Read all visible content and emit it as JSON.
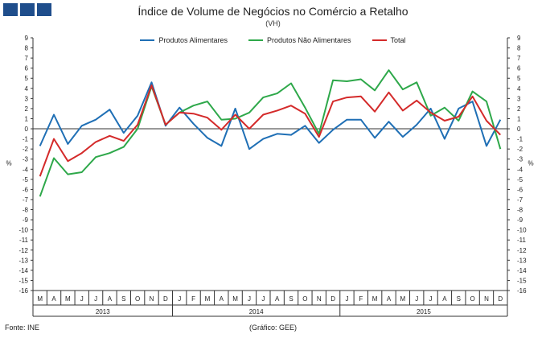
{
  "header": {
    "title": "Índice de Volume de Negócios no Comércio a Retalho",
    "subtitle": "(VH)"
  },
  "footer": {
    "source": "Fonte: INE",
    "credit": "(Gráfico: GEE)"
  },
  "chart_data": {
    "type": "line",
    "title": "Índice de Volume de Negócios no Comércio a Retalho",
    "subtitle": "(VH)",
    "ylabel_left": "%",
    "ylabel_right": "%",
    "ylim": [
      -16,
      9
    ],
    "yticks": [
      9,
      8,
      7,
      6,
      5,
      4,
      3,
      2,
      1,
      0,
      -1,
      -2,
      -3,
      -4,
      -5,
      -6,
      -7,
      -8,
      -9,
      -10,
      -11,
      -12,
      -13,
      -14,
      -15,
      -16
    ],
    "grid": false,
    "legend_position": "top",
    "x": [
      "M",
      "A",
      "M",
      "J",
      "J",
      "A",
      "S",
      "O",
      "N",
      "D",
      "J",
      "F",
      "M",
      "A",
      "M",
      "J",
      "J",
      "A",
      "S",
      "O",
      "N",
      "D",
      "J",
      "F",
      "M",
      "A",
      "M",
      "J",
      "J",
      "A",
      "S",
      "O",
      "N",
      "D"
    ],
    "year_groups": [
      {
        "label": "2013",
        "start": 0,
        "end": 9
      },
      {
        "label": "2014",
        "start": 10,
        "end": 21
      },
      {
        "label": "2015",
        "start": 22,
        "end": 33
      }
    ],
    "series": [
      {
        "name": "Produtos Alimentares",
        "color": "#1f6fb5",
        "values": [
          -1.7,
          1.4,
          -1.5,
          0.3,
          0.9,
          1.9,
          -0.4,
          1.3,
          4.6,
          0.3,
          2.1,
          0.5,
          -0.9,
          -1.7,
          2.0,
          -2.0,
          -1.0,
          -0.5,
          -0.6,
          0.3,
          -1.4,
          -0.1,
          0.9,
          0.9,
          -0.9,
          0.7,
          -0.8,
          0.4,
          2.0,
          -1.0,
          2.0,
          2.7,
          -1.7,
          0.9
        ]
      },
      {
        "name": "Produtos Não Alimentares",
        "color": "#2ea84a",
        "values": [
          -6.7,
          -2.9,
          -4.5,
          -4.3,
          -2.8,
          -2.4,
          -1.8,
          0.0,
          4.2,
          0.4,
          1.6,
          2.3,
          2.7,
          0.9,
          1.0,
          1.6,
          3.1,
          3.5,
          4.5,
          2.1,
          -0.5,
          4.8,
          4.7,
          4.9,
          3.8,
          5.8,
          3.9,
          4.6,
          1.3,
          2.1,
          0.8,
          3.7,
          2.7,
          -2.0
        ]
      },
      {
        "name": "Total",
        "color": "#d42a2a",
        "values": [
          -4.7,
          -1.0,
          -3.2,
          -2.4,
          -1.3,
          -0.7,
          -1.2,
          0.4,
          4.3,
          0.4,
          1.6,
          1.5,
          1.1,
          -0.1,
          1.4,
          0.0,
          1.4,
          1.8,
          2.3,
          1.5,
          -0.8,
          2.7,
          3.1,
          3.2,
          1.7,
          3.6,
          1.8,
          2.8,
          1.6,
          0.8,
          1.2,
          3.2,
          0.8,
          -0.6
        ]
      }
    ]
  }
}
